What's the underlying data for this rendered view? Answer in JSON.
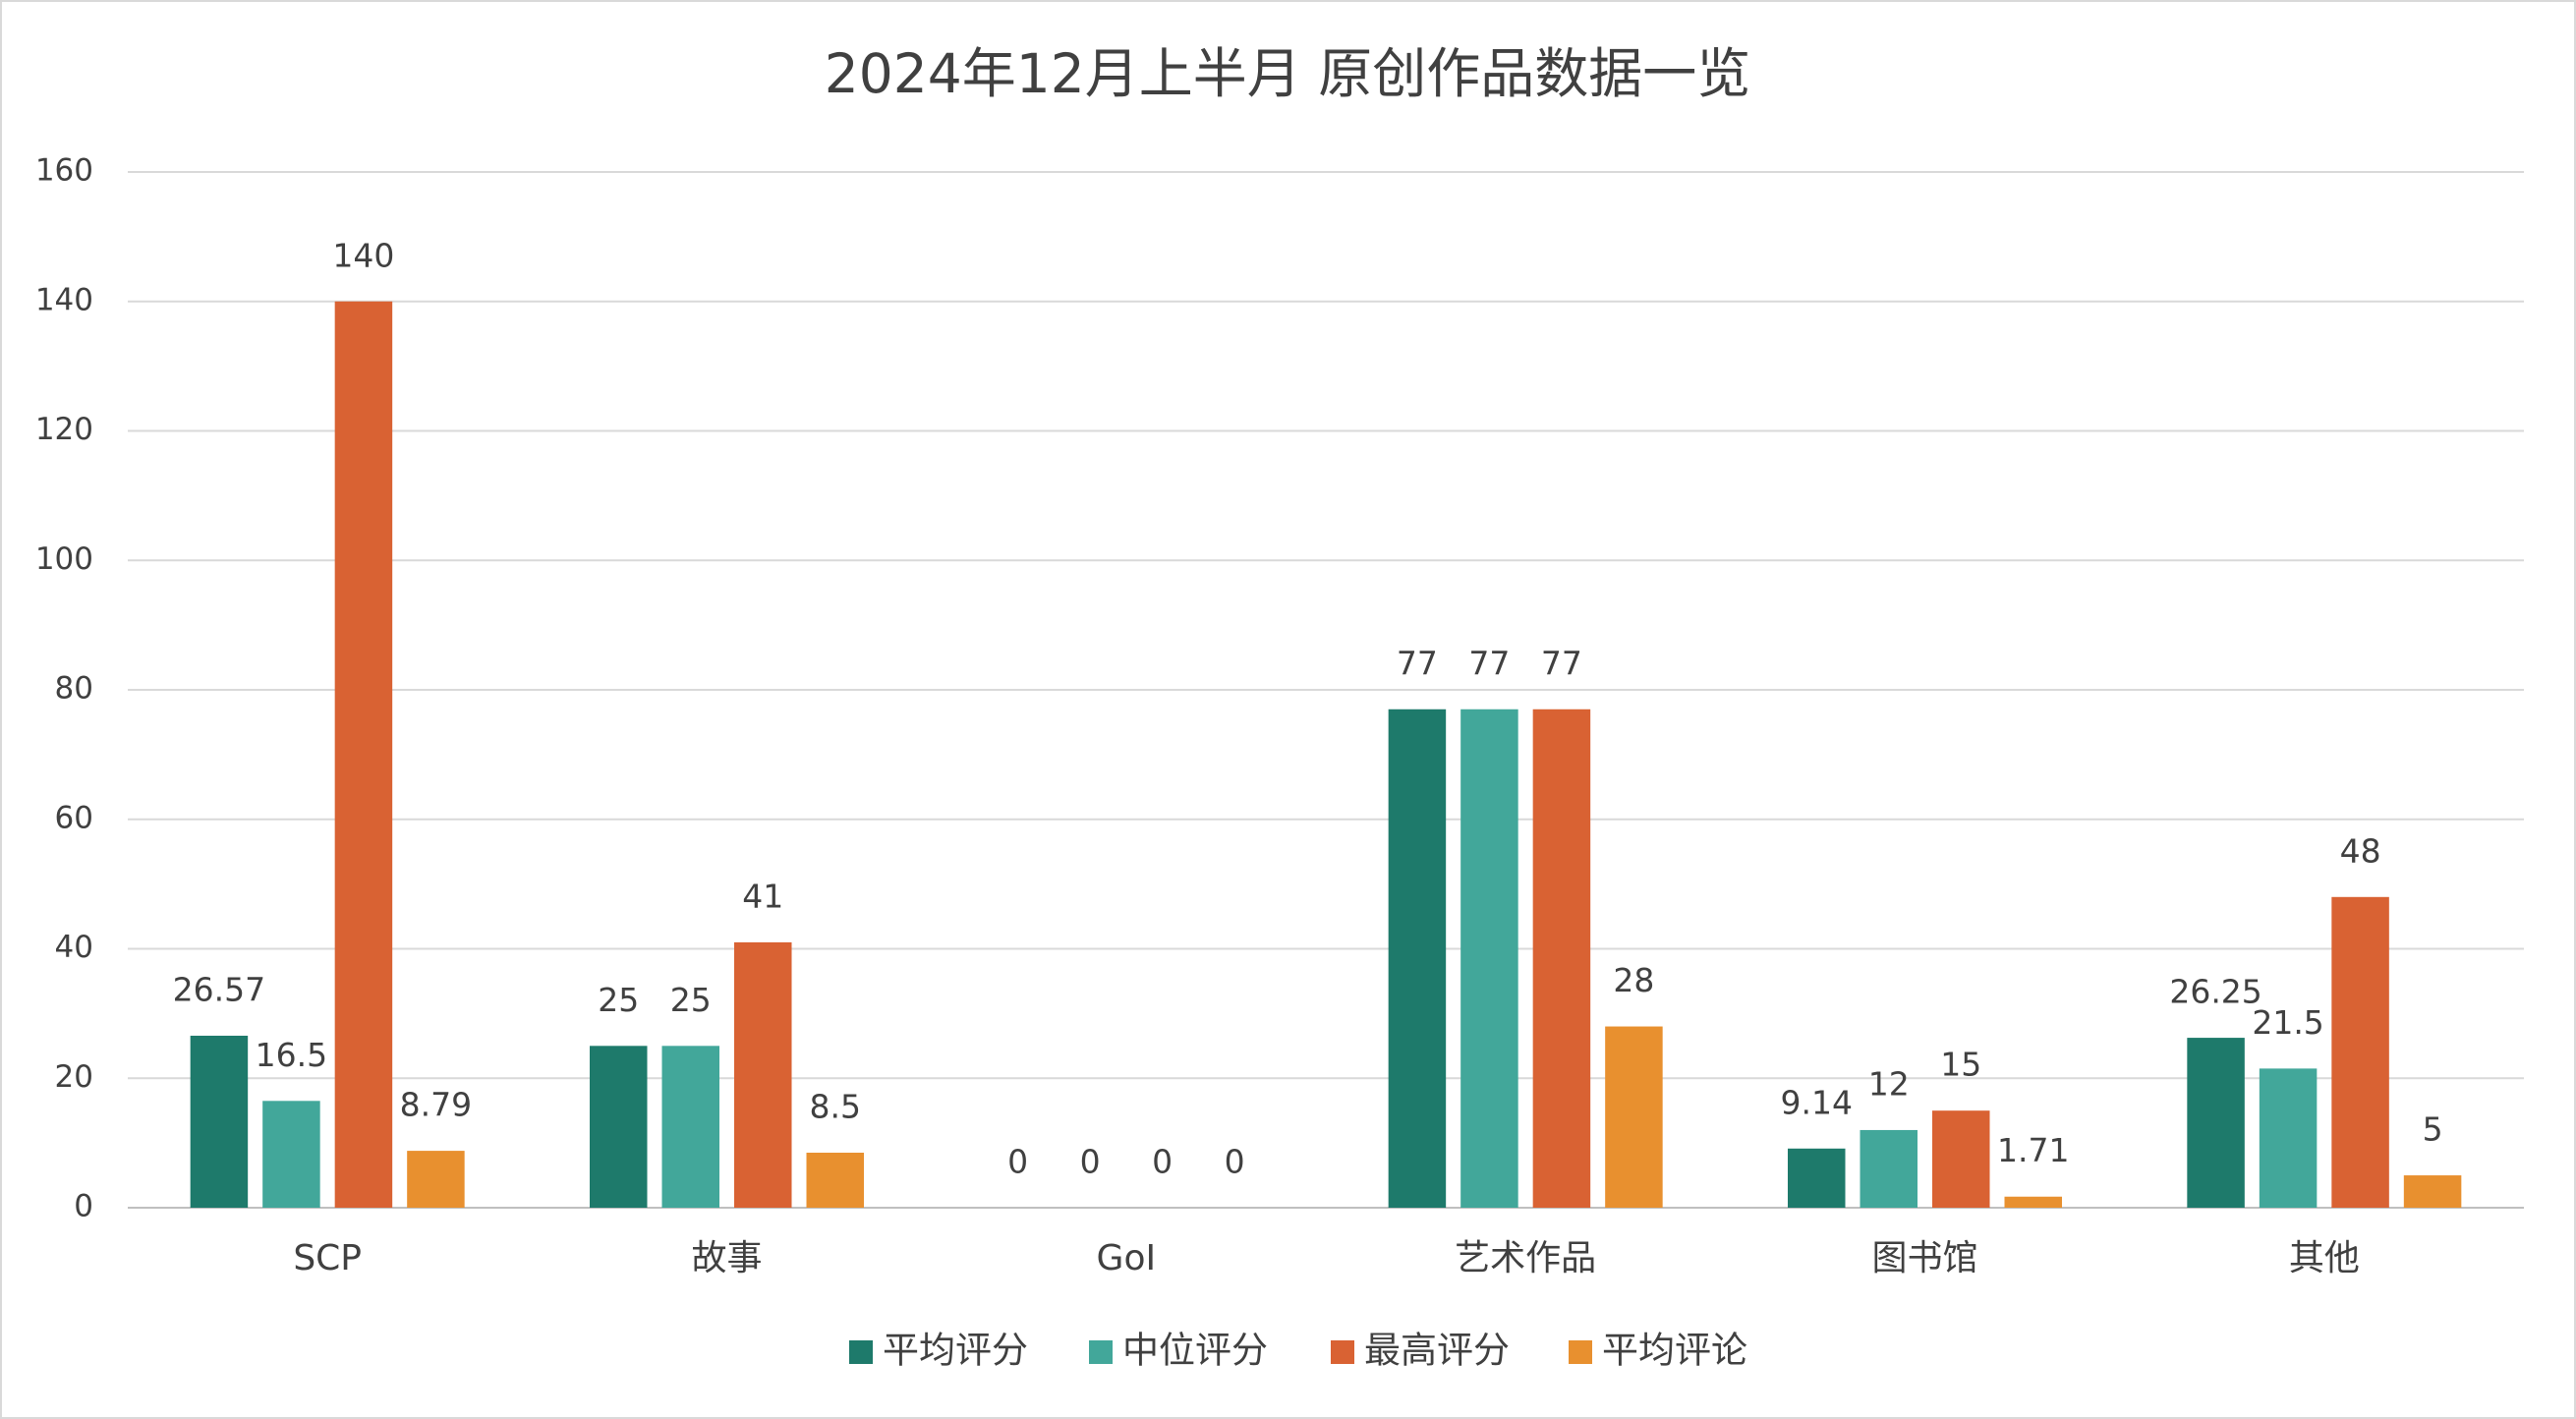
{
  "chart_data": {
    "type": "bar",
    "title": "2024年12月上半月 原创作品数据一览",
    "categories": [
      "SCP",
      "故事",
      "GoI",
      "艺术作品",
      "图书馆",
      "其他"
    ],
    "series": [
      {
        "name": "平均评分",
        "color": "#1e7a6b",
        "values": [
          26.57,
          25,
          0,
          77,
          9.14,
          26.25
        ]
      },
      {
        "name": "中位评分",
        "color": "#42a79a",
        "values": [
          16.5,
          25,
          0,
          77,
          12,
          21.5
        ]
      },
      {
        "name": "最高评分",
        "color": "#d96233",
        "values": [
          140,
          41,
          0,
          77,
          15,
          48
        ]
      },
      {
        "name": "平均评论",
        "color": "#e8902f",
        "values": [
          8.79,
          8.5,
          0,
          28,
          1.71,
          5
        ]
      }
    ],
    "ylim": [
      0,
      160
    ],
    "yticks": [
      0,
      20,
      40,
      60,
      80,
      100,
      120,
      140,
      160
    ],
    "grid": true,
    "legend": "bottom"
  }
}
